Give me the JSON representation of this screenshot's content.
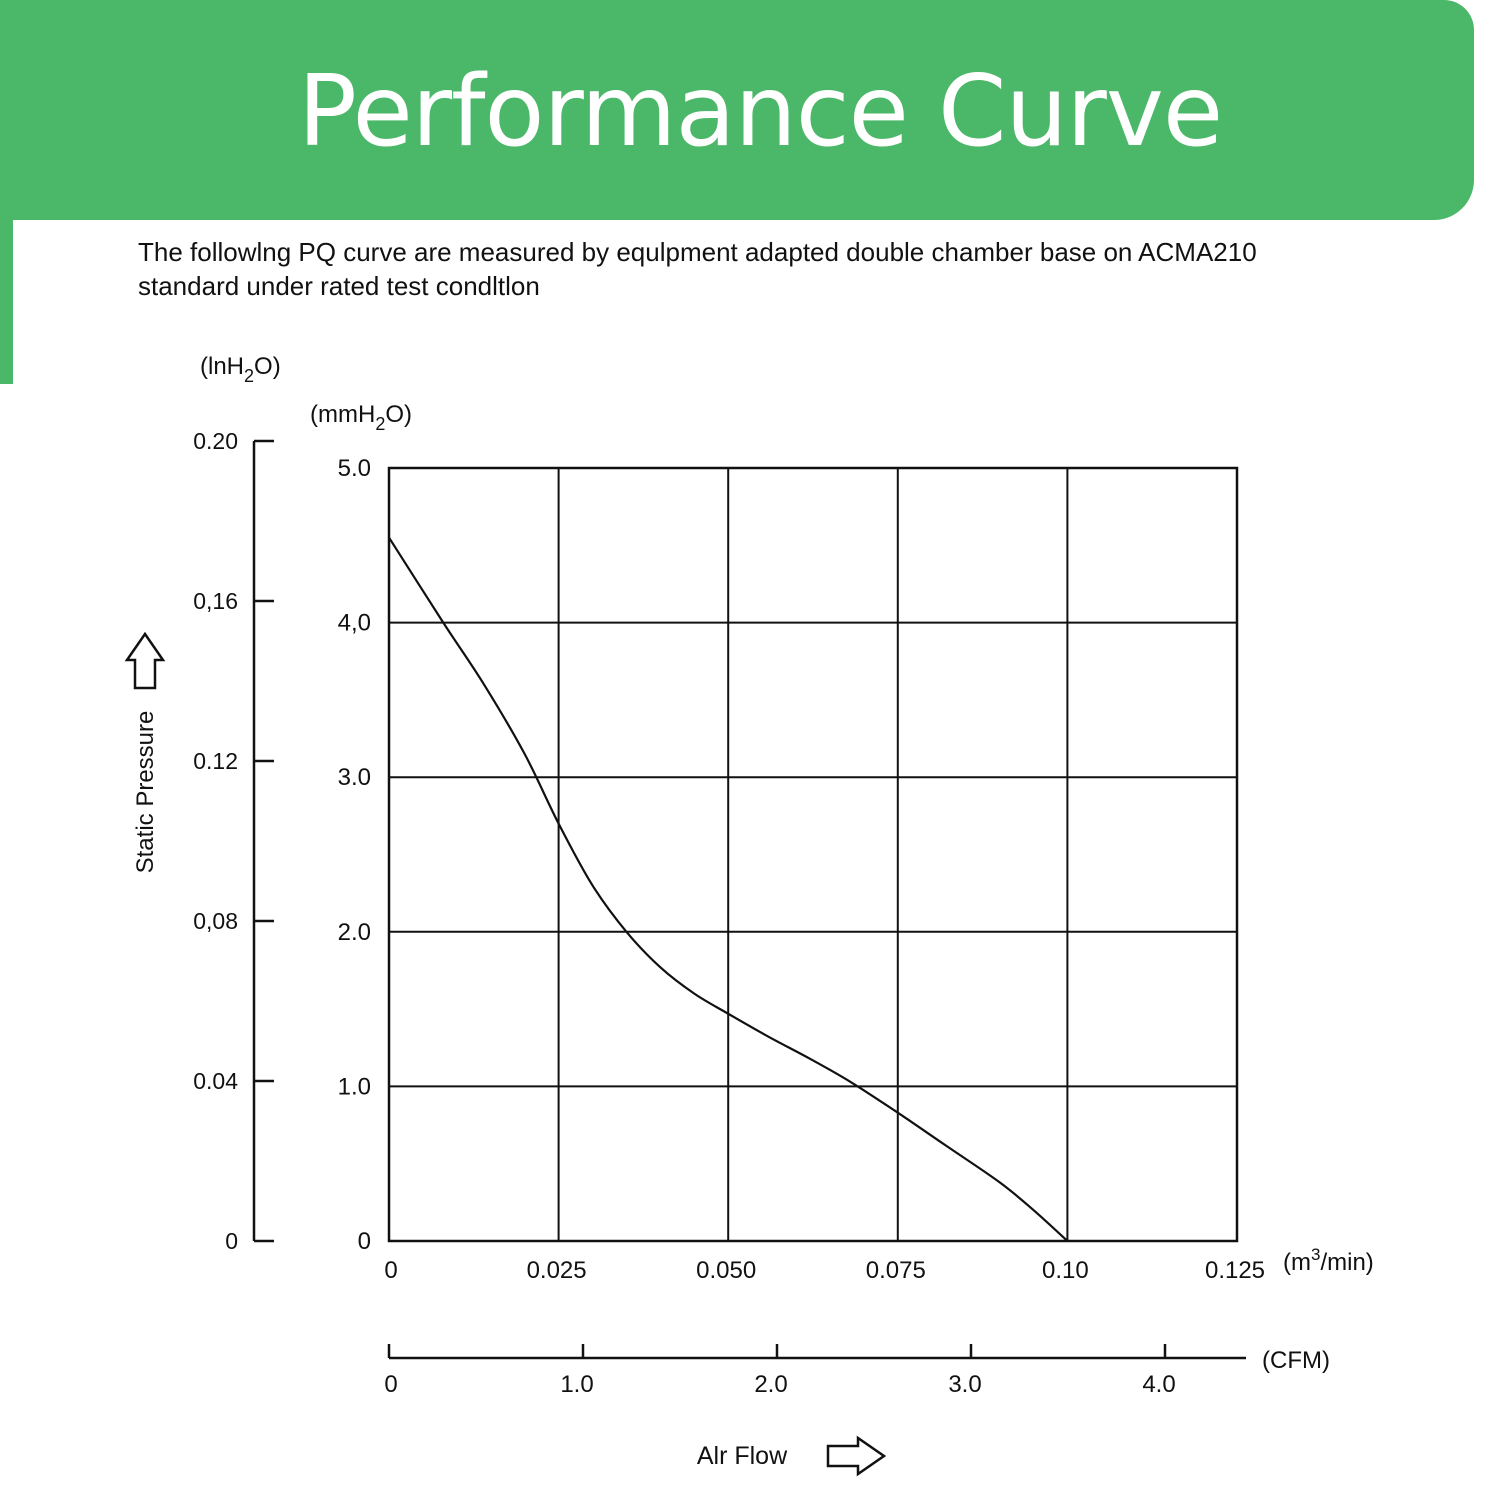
{
  "banner": {
    "title": "Performance Curve"
  },
  "caption": {
    "line1": "The followlng PQ curve are measured by equlpment adapted double chamber base on ACMA210",
    "line2": "standard under rated test condltlon"
  },
  "colors": {
    "banner_green": "#4bb869",
    "ink": "#111111"
  },
  "chart_data": {
    "type": "line",
    "title": "",
    "xlabel": "Alr Flow",
    "ylabel": "Static Pressure",
    "x_unit_primary": "(m3/min)",
    "x_unit_secondary": "(CFM)",
    "y_unit_primary": "(mmH2O)",
    "y_unit_secondary": "(lnH2O)",
    "xlim": [
      0,
      0.125
    ],
    "ylim": [
      0,
      5.0
    ],
    "grid": true,
    "x_ticks": [
      0,
      0.025,
      0.05,
      0.075,
      0.1,
      0.125
    ],
    "x_tick_labels": [
      "0",
      "0.025",
      "0.050",
      "0.075",
      "0.10",
      "0.125"
    ],
    "y_ticks": [
      0,
      1,
      2,
      3,
      4,
      5
    ],
    "y_tick_labels": [
      "0",
      "1.0",
      "2.0",
      "3.0",
      "4,0",
      "5.0"
    ],
    "y2_ticks": [
      0,
      0.04,
      0.08,
      0.12,
      0.16,
      0.2
    ],
    "y2_tick_labels": [
      "0",
      "0.04",
      "0,08",
      "0.12",
      "0,16",
      "0.20"
    ],
    "cfm_ticks": [
      0,
      1,
      2,
      3,
      4
    ],
    "cfm_tick_labels": [
      "0",
      "1.0",
      "2.0",
      "3.0",
      "4.0"
    ],
    "series": [
      {
        "x": [
          0,
          0.008,
          0.014,
          0.02,
          0.025,
          0.03,
          0.035,
          0.04,
          0.045,
          0.05,
          0.056,
          0.062,
          0.068,
          0.075,
          0.082,
          0.09,
          0.095,
          0.1
        ],
        "y": [
          4.55,
          4.0,
          3.6,
          3.15,
          2.7,
          2.3,
          2.0,
          1.77,
          1.6,
          1.47,
          1.32,
          1.18,
          1.03,
          0.83,
          0.62,
          0.38,
          0.2,
          0.0
        ]
      }
    ]
  }
}
